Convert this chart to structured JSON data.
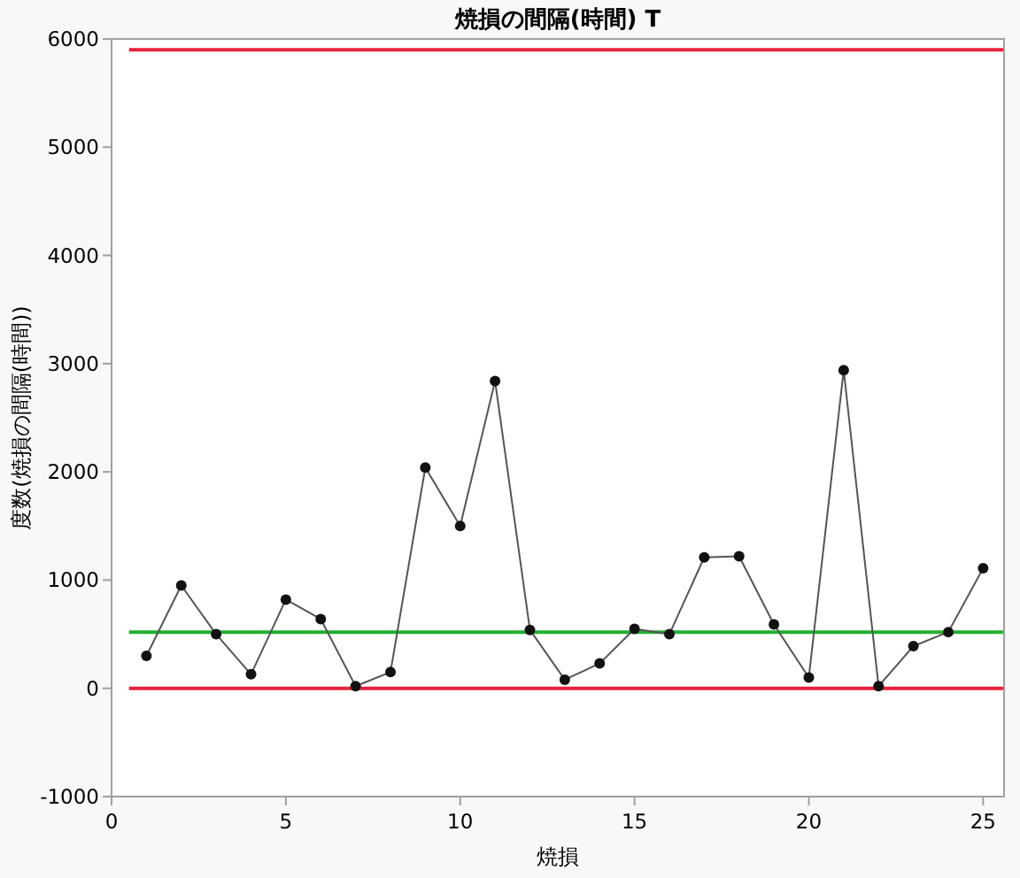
{
  "chart_data": {
    "type": "line",
    "title": "焼損の間隔(時間)  T",
    "xlabel": "焼損",
    "ylabel": "度数(焼損の間隔(時間))",
    "x": [
      1,
      2,
      3,
      4,
      5,
      6,
      7,
      8,
      9,
      10,
      11,
      12,
      13,
      14,
      15,
      16,
      17,
      18,
      19,
      20,
      21,
      22,
      23,
      24,
      25
    ],
    "series": [
      {
        "color": "#555555",
        "values": [
          300,
          950,
          500,
          130,
          820,
          640,
          20,
          150,
          2040,
          1500,
          2840,
          540,
          80,
          230,
          550,
          500,
          1210,
          1220,
          590,
          100,
          2940,
          20,
          390,
          520,
          1110
        ]
      }
    ],
    "xlim": [
      0,
      25.6
    ],
    "xticks": [
      0,
      5,
      10,
      15,
      20,
      25
    ],
    "ylim": [
      -1000,
      6000
    ],
    "yticks": [
      -1000,
      0,
      1000,
      2000,
      3000,
      4000,
      5000,
      6000
    ],
    "ref_lines": [
      {
        "axis": "y",
        "value": 5900,
        "color": "#e8213c"
      },
      {
        "axis": "y",
        "value": 520,
        "color": "#21b02e"
      },
      {
        "axis": "y",
        "value": 0,
        "color": "#e8213c"
      }
    ],
    "marker": "circle",
    "grid": false
  }
}
